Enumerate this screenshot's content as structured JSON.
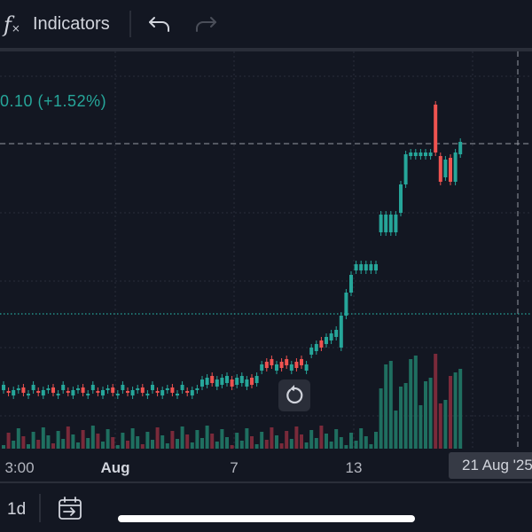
{
  "toolbar": {
    "fx_icon": "function-fx-icon",
    "indicators_label": "Indicators",
    "undo_icon": "undo-arrow-icon",
    "redo_icon": "redo-arrow-icon"
  },
  "chart": {
    "change_text": "0.10 (+1.52%)",
    "colors": {
      "up": "#26a69a",
      "down": "#ef5350",
      "vol_up": "#1f6f60",
      "vol_down": "#7a2a3a",
      "grid": "#2a2e39",
      "background": "#131722"
    },
    "reset_icon": "reset-rotate-icon"
  },
  "x_axis": {
    "ticks": [
      {
        "label": "3:00",
        "bold": false
      },
      {
        "label": "Aug",
        "bold": true
      },
      {
        "label": "7",
        "bold": false
      },
      {
        "label": "13",
        "bold": false
      }
    ],
    "crosshair_date": "21 Aug '25"
  },
  "bottom_bar": {
    "interval": "1d",
    "goto_date_icon": "calendar-goto-icon"
  }
}
